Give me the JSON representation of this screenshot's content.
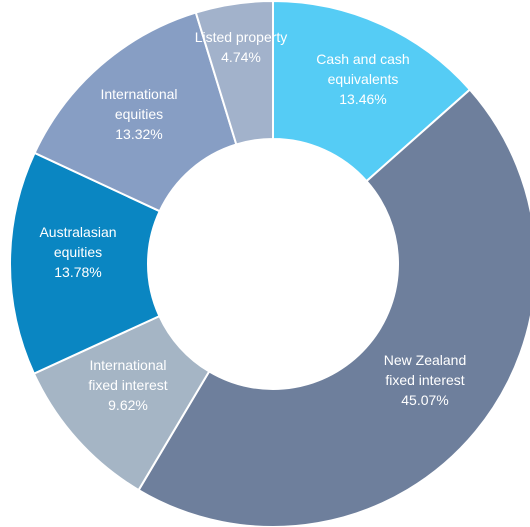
{
  "chart_data": {
    "type": "pie",
    "donut": true,
    "start_angle_deg": 0,
    "direction": "clockwise",
    "legend": "none",
    "slices": [
      {
        "key": "cash",
        "label_lines": [
          "Cash and cash",
          "equivalents"
        ],
        "value": 13.46,
        "value_label": "13.46%",
        "color": "#55ccf5"
      },
      {
        "key": "nz-fixed",
        "label_lines": [
          "New Zealand",
          "fixed interest"
        ],
        "value": 45.07,
        "value_label": "45.07%",
        "color": "#6e7f9c"
      },
      {
        "key": "intl-fixed",
        "label_lines": [
          "International",
          "fixed interest"
        ],
        "value": 9.62,
        "value_label": "9.62%",
        "color": "#a5b5c5"
      },
      {
        "key": "aus-equities",
        "label_lines": [
          "Australasian",
          "equities"
        ],
        "value": 13.78,
        "value_label": "13.78%",
        "color": "#0a86c2"
      },
      {
        "key": "intl-equities",
        "label_lines": [
          "International",
          "equities"
        ],
        "value": 13.32,
        "value_label": "13.32%",
        "color": "#879ec4"
      },
      {
        "key": "listed-property",
        "label_lines": [
          "Listed property"
        ],
        "value": 4.74,
        "value_label": "4.74%",
        "color": "#a2b2cb"
      }
    ]
  }
}
